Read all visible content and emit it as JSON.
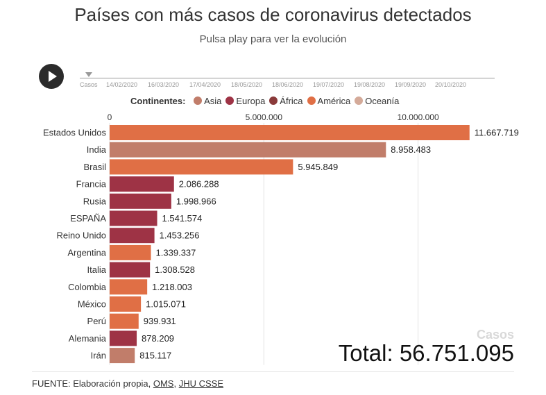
{
  "header": {
    "title": "Países con más casos de coronavirus detectados",
    "subtitle": "Pulsa play para ver la evolución"
  },
  "timeline": {
    "labels": [
      "Casos",
      "14/02/2020",
      "16/03/2020",
      "17/04/2020",
      "18/05/2020",
      "18/06/2020",
      "19/07/2020",
      "19/08/2020",
      "19/09/2020",
      "20/10/2020"
    ]
  },
  "legend": {
    "title": "Continentes:",
    "items": [
      {
        "label": "Asia",
        "color": "#c17d6a"
      },
      {
        "label": "Europa",
        "color": "#9e3345"
      },
      {
        "label": "África",
        "color": "#8a3a3a"
      },
      {
        "label": "América",
        "color": "#e06f45"
      },
      {
        "label": "Oceanía",
        "color": "#d4aa99"
      }
    ]
  },
  "chart_data": {
    "type": "bar",
    "orientation": "horizontal",
    "categories": [
      "Estados Unidos",
      "India",
      "Brasil",
      "Francia",
      "Rusia",
      "ESPAÑA",
      "Reino Unido",
      "Argentina",
      "Italia",
      "Colombia",
      "México",
      "Perú",
      "Alemania",
      "Irán"
    ],
    "values": [
      11667719,
      8958483,
      5945849,
      2086288,
      1998966,
      1541574,
      1453256,
      1339337,
      1308528,
      1218003,
      1015071,
      939931,
      878209,
      815117
    ],
    "value_labels": [
      "11.667.719",
      "8.958.483",
      "5.945.849",
      "2.086.288",
      "1.998.966",
      "1.541.574",
      "1.453.256",
      "1.339.337",
      "1.308.528",
      "1.218.003",
      "1.015.071",
      "939.931",
      "878.209",
      "815.117"
    ],
    "continents": [
      "América",
      "Asia",
      "América",
      "Europa",
      "Europa",
      "Europa",
      "Europa",
      "América",
      "Europa",
      "América",
      "América",
      "América",
      "Europa",
      "Asia"
    ],
    "xlim": [
      0,
      13000000
    ],
    "ticks": [
      0,
      5000000,
      10000000
    ],
    "tick_labels": [
      "0",
      "5.000.000",
      "10.000.000"
    ],
    "grid": true
  },
  "summary": {
    "metric_label": "Casos",
    "total": "Total: 56.751.095"
  },
  "footer": {
    "prefix": "FUENTE: Elaboración propia, ",
    "link1": "OMS",
    "separator": ", ",
    "link2": "JHU CSSE"
  }
}
